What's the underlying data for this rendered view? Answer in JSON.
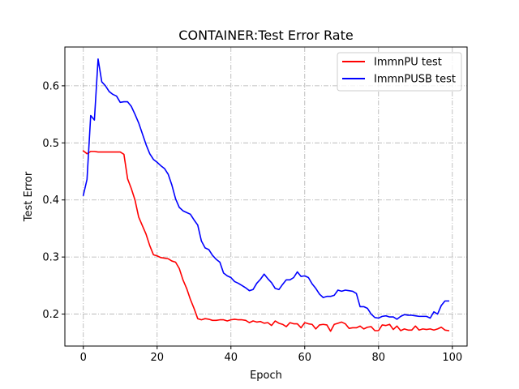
{
  "chart_data": {
    "type": "line",
    "title": "CONTAINER:Test Error Rate",
    "xlabel": "Epoch",
    "ylabel": "Test Error",
    "xlim": [
      -5,
      104
    ],
    "ylim": [
      0.144,
      0.668
    ],
    "xticks": [
      0,
      20,
      40,
      60,
      80,
      100
    ],
    "yticks": [
      0.2,
      0.3,
      0.4,
      0.5,
      0.6
    ],
    "xtick_labels": [
      "0",
      "20",
      "40",
      "60",
      "80",
      "100"
    ],
    "ytick_labels": [
      "0.2",
      "0.3",
      "0.4",
      "0.5",
      "0.6"
    ],
    "grid": true,
    "legend_position": "top-right",
    "x": [
      0,
      1,
      2,
      3,
      4,
      5,
      6,
      7,
      8,
      9,
      10,
      11,
      12,
      13,
      14,
      15,
      16,
      17,
      18,
      19,
      20,
      21,
      22,
      23,
      24,
      25,
      26,
      27,
      28,
      29,
      30,
      31,
      32,
      33,
      34,
      35,
      36,
      37,
      38,
      39,
      40,
      41,
      42,
      43,
      44,
      45,
      46,
      47,
      48,
      49,
      50,
      51,
      52,
      53,
      54,
      55,
      56,
      57,
      58,
      59,
      60,
      61,
      62,
      63,
      64,
      65,
      66,
      67,
      68,
      69,
      70,
      71,
      72,
      73,
      74,
      75,
      76,
      77,
      78,
      79,
      80,
      81,
      82,
      83,
      84,
      85,
      86,
      87,
      88,
      89,
      90,
      91,
      92,
      93,
      94,
      95,
      96,
      97,
      98,
      99
    ],
    "series": [
      {
        "name": "ImmnPU test",
        "color": "#ff0000",
        "values": [
          0.486,
          0.481,
          0.485,
          0.485,
          0.484,
          0.484,
          0.484,
          0.484,
          0.484,
          0.484,
          0.484,
          0.48,
          0.437,
          0.42,
          0.4,
          0.37,
          0.355,
          0.34,
          0.32,
          0.304,
          0.302,
          0.299,
          0.298,
          0.297,
          0.293,
          0.291,
          0.28,
          0.26,
          0.245,
          0.226,
          0.21,
          0.192,
          0.19,
          0.192,
          0.191,
          0.189,
          0.189,
          0.19,
          0.19,
          0.188,
          0.19,
          0.191,
          0.19,
          0.19,
          0.189,
          0.185,
          0.188,
          0.186,
          0.187,
          0.184,
          0.185,
          0.18,
          0.188,
          0.184,
          0.182,
          0.178,
          0.185,
          0.183,
          0.183,
          0.176,
          0.185,
          0.183,
          0.182,
          0.174,
          0.181,
          0.182,
          0.181,
          0.17,
          0.182,
          0.184,
          0.186,
          0.183,
          0.175,
          0.176,
          0.176,
          0.179,
          0.174,
          0.177,
          0.178,
          0.171,
          0.171,
          0.181,
          0.18,
          0.182,
          0.173,
          0.179,
          0.171,
          0.174,
          0.172,
          0.172,
          0.179,
          0.172,
          0.174,
          0.173,
          0.174,
          0.172,
          0.174,
          0.177,
          0.172,
          0.171
        ]
      },
      {
        "name": "ImmnPUSB test",
        "color": "#0000ff",
        "values": [
          0.408,
          0.436,
          0.548,
          0.54,
          0.647,
          0.607,
          0.6,
          0.59,
          0.585,
          0.582,
          0.571,
          0.572,
          0.572,
          0.564,
          0.55,
          0.535,
          0.516,
          0.497,
          0.481,
          0.471,
          0.466,
          0.46,
          0.455,
          0.445,
          0.426,
          0.402,
          0.387,
          0.381,
          0.378,
          0.375,
          0.365,
          0.356,
          0.328,
          0.316,
          0.313,
          0.303,
          0.296,
          0.291,
          0.272,
          0.267,
          0.264,
          0.257,
          0.254,
          0.25,
          0.246,
          0.241,
          0.243,
          0.254,
          0.261,
          0.27,
          0.262,
          0.255,
          0.245,
          0.243,
          0.252,
          0.26,
          0.26,
          0.264,
          0.274,
          0.266,
          0.267,
          0.264,
          0.253,
          0.245,
          0.235,
          0.229,
          0.231,
          0.231,
          0.233,
          0.242,
          0.24,
          0.242,
          0.241,
          0.24,
          0.236,
          0.213,
          0.213,
          0.21,
          0.2,
          0.194,
          0.193,
          0.196,
          0.197,
          0.195,
          0.195,
          0.191,
          0.196,
          0.199,
          0.198,
          0.198,
          0.197,
          0.196,
          0.196,
          0.196,
          0.193,
          0.204,
          0.2,
          0.215,
          0.223,
          0.223
        ]
      }
    ]
  }
}
